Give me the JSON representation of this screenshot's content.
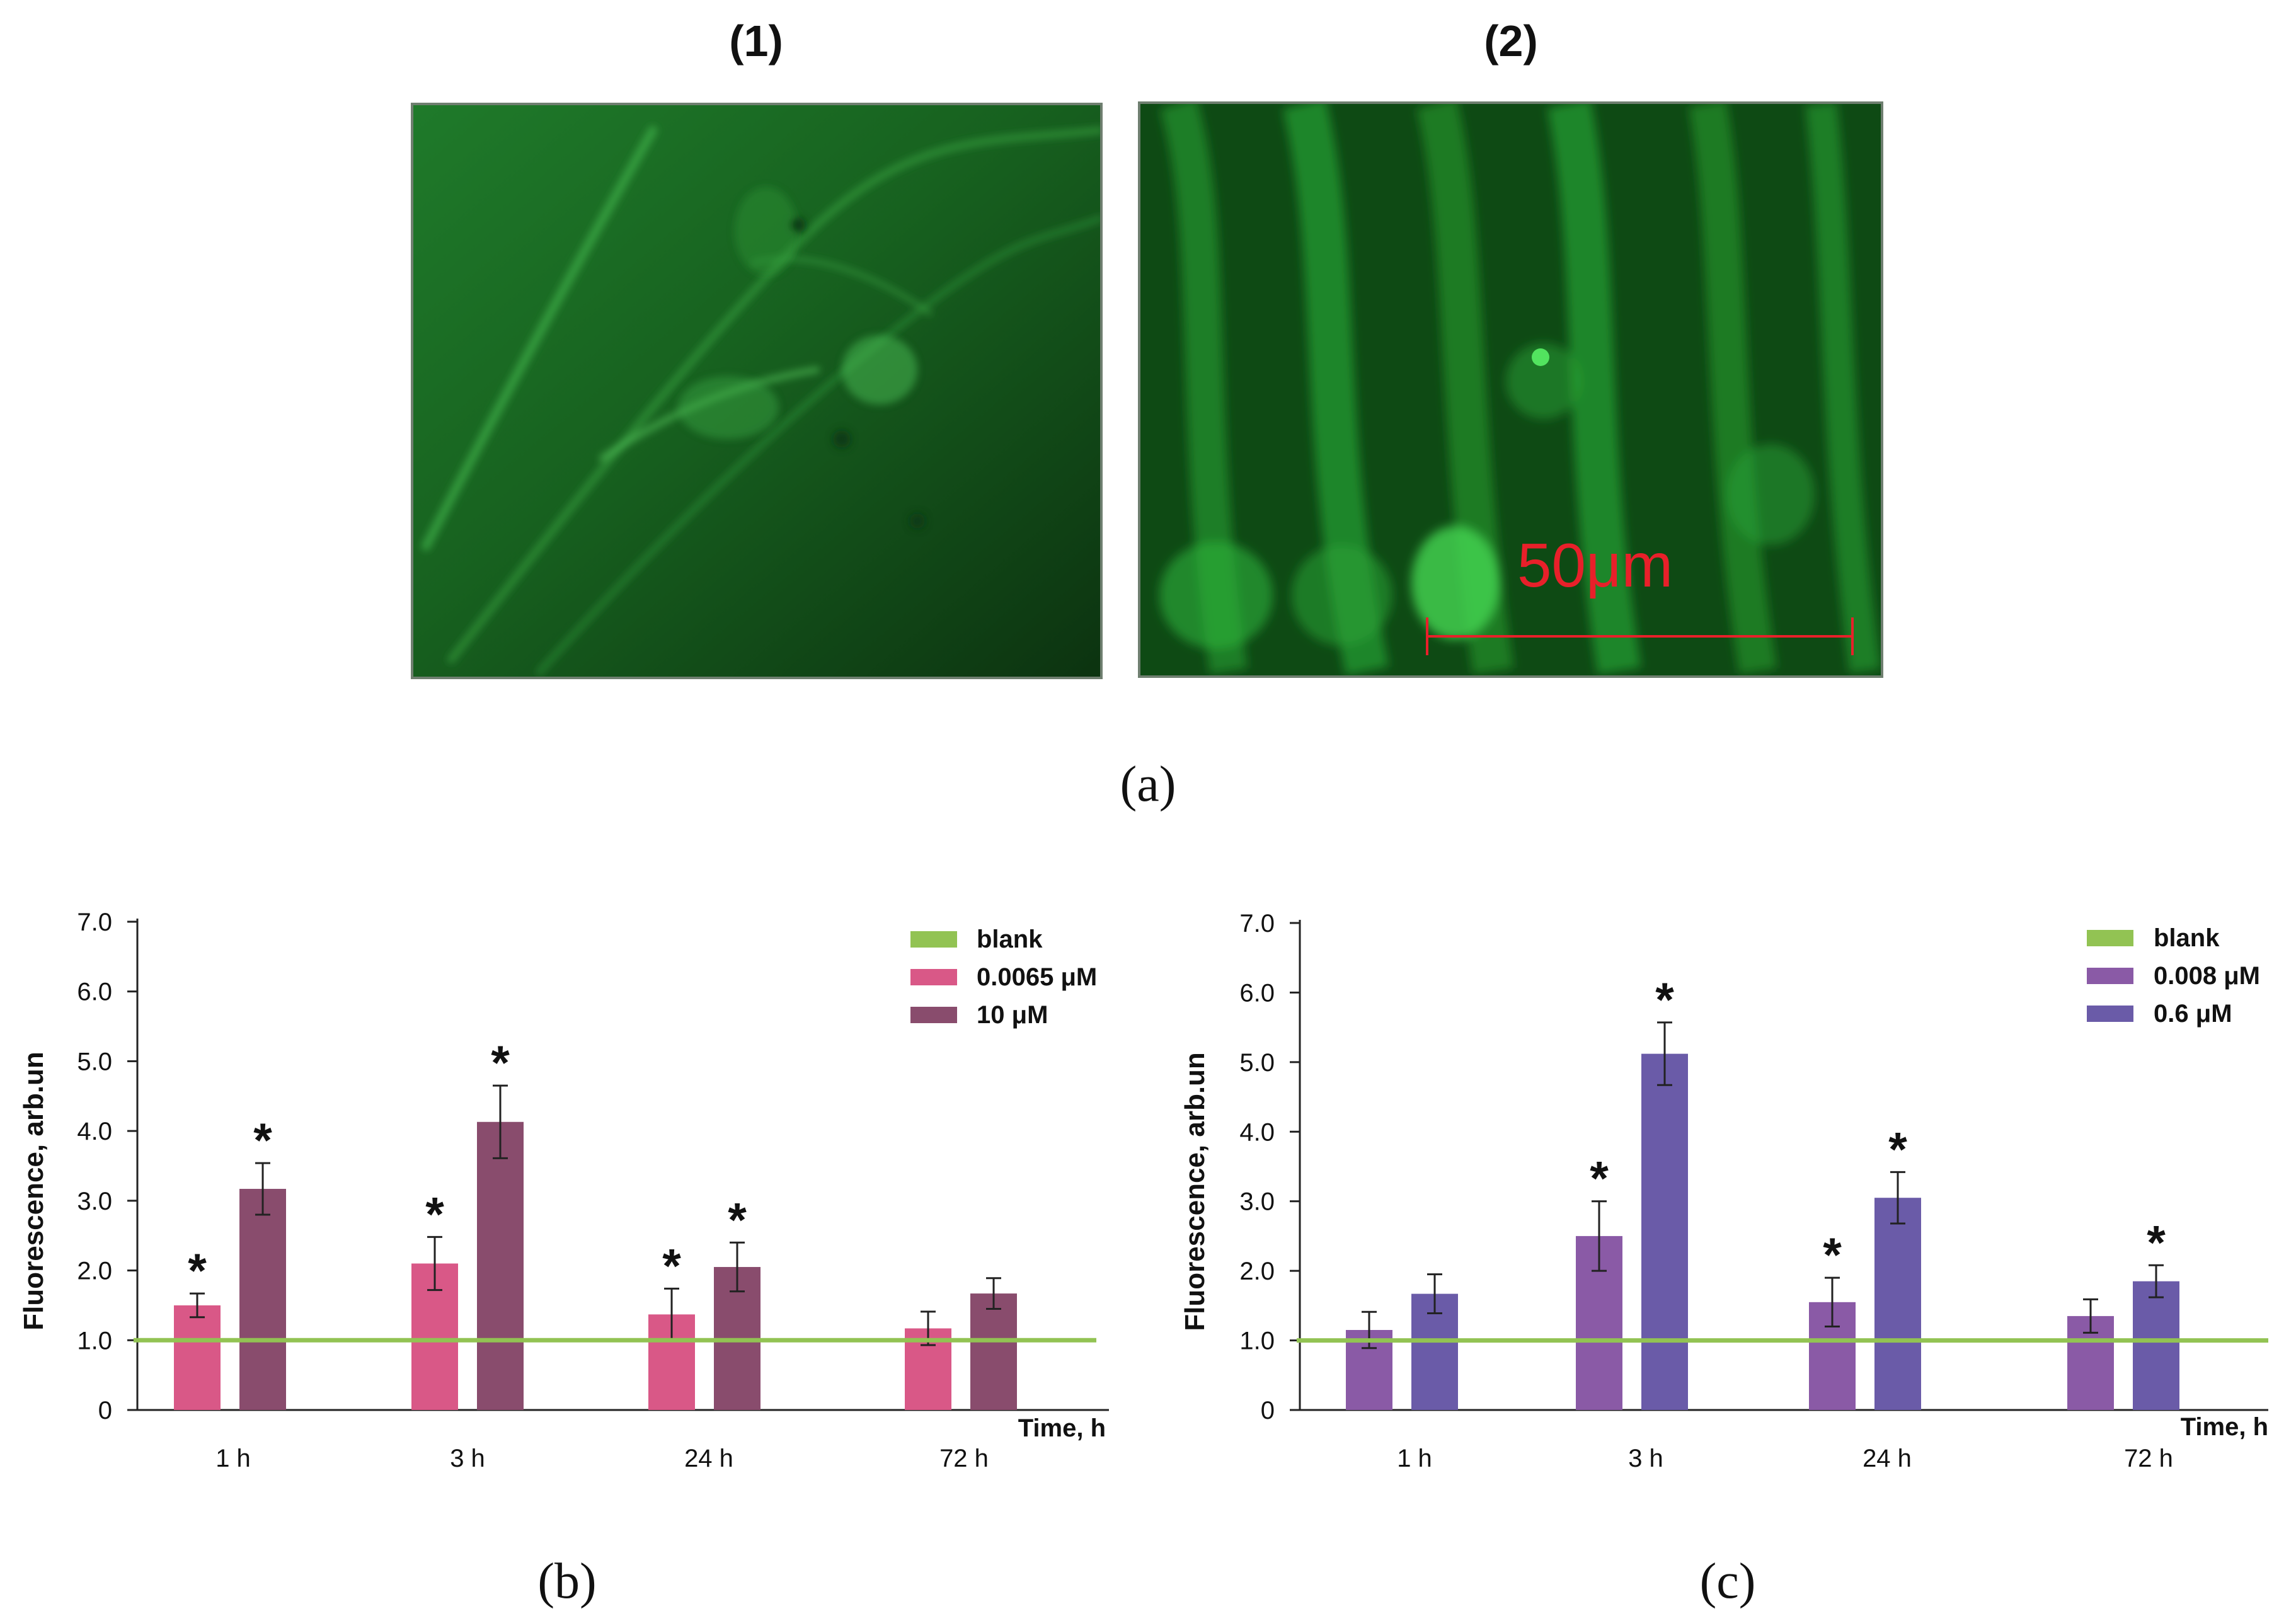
{
  "figure": {
    "panel_a": {
      "label": "(a)",
      "image1_label": "(1)",
      "image2_label": "(2)",
      "scale_bar_label": "50μm"
    },
    "panel_b_label": "(b)",
    "panel_c_label": "(c)",
    "colors": {
      "blank_line": "#92c353",
      "b_low": "#d95887",
      "b_high": "#894c6d",
      "c_low": "#8a5aa6",
      "c_high": "#6a5ba8",
      "scale_bar": "#e8202a"
    }
  },
  "chart_data": [
    {
      "type": "bar",
      "panel": "(b)",
      "ylabel": "Fluorescence, arb.un",
      "xlabel": "Time, h",
      "categories": [
        "1 h",
        "3 h",
        "24 h",
        "72 h"
      ],
      "ylim": [
        0,
        7.0
      ],
      "yticks": [
        "0",
        "1.0",
        "2.0",
        "3.0",
        "4.0",
        "5.0",
        "6.0",
        "7.0"
      ],
      "reference_line": {
        "name": "blank",
        "value": 1.0
      },
      "legend": [
        "blank",
        "0.0065 μM",
        "10 μM"
      ],
      "legend_position": "top-right",
      "series": [
        {
          "name": "0.0065 μM",
          "values": [
            1.5,
            2.1,
            1.37,
            1.17
          ],
          "errors": [
            0.17,
            0.38,
            0.37,
            0.24
          ],
          "significant": [
            true,
            true,
            true,
            false
          ]
        },
        {
          "name": "10 μM",
          "values": [
            3.17,
            4.13,
            2.05,
            1.67
          ],
          "errors": [
            0.37,
            0.52,
            0.35,
            0.22
          ],
          "significant": [
            true,
            true,
            true,
            false
          ]
        }
      ],
      "marker": "*"
    },
    {
      "type": "bar",
      "panel": "(c)",
      "ylabel": "Fluorescence, arb.un",
      "xlabel": "Time, h",
      "categories": [
        "1 h",
        "3 h",
        "24 h",
        "72 h"
      ],
      "ylim": [
        0,
        7.0
      ],
      "yticks": [
        "0",
        "1.0",
        "2.0",
        "3.0",
        "4.0",
        "5.0",
        "6.0",
        "7.0"
      ],
      "reference_line": {
        "name": "blank",
        "value": 1.0
      },
      "legend": [
        "blank",
        "0.008 μM",
        "0.6 μM"
      ],
      "legend_position": "top-right",
      "series": [
        {
          "name": "0.008 μM",
          "values": [
            1.15,
            2.5,
            1.55,
            1.35
          ],
          "errors": [
            0.26,
            0.5,
            0.35,
            0.24
          ],
          "significant": [
            false,
            true,
            true,
            false
          ]
        },
        {
          "name": "0.6 μM",
          "values": [
            1.67,
            5.12,
            3.05,
            1.85
          ],
          "errors": [
            0.28,
            0.45,
            0.37,
            0.23
          ],
          "significant": [
            false,
            true,
            true,
            true
          ]
        }
      ],
      "marker": "*"
    }
  ]
}
